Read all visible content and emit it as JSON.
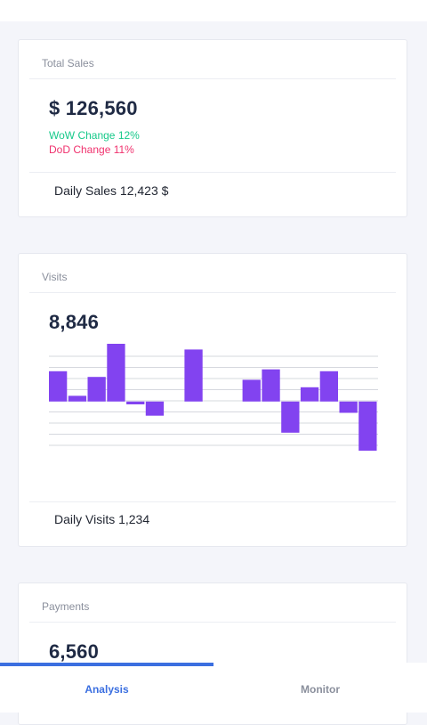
{
  "colors": {
    "accent": "#3b6fe0",
    "wow_change": "#17c98a",
    "dod_change": "#f0326e",
    "bar_color": "#8243f0"
  },
  "sales": {
    "title": "Total Sales",
    "value": "$ 126,560",
    "wow_change": "WoW Change 12%",
    "dod_change": "DoD Change 11%",
    "daily": "Daily Sales 12,423 $"
  },
  "visits": {
    "title": "Visits",
    "value": "8,846",
    "daily": "Daily Visits 1,234"
  },
  "payments": {
    "title": "Payments",
    "value": "6,560"
  },
  "chart_data": {
    "type": "bar",
    "series": [
      {
        "values": [
          3.2,
          0.6,
          2.6,
          6.1,
          -0.3,
          -1.5,
          0,
          5.5,
          0,
          0,
          2.3,
          3.4,
          -3.3,
          1.5,
          3.2,
          -1.2,
          -5.2
        ]
      }
    ],
    "ylim": [
      -5.2,
      6.1
    ],
    "grid": true
  },
  "tabs": [
    {
      "label": "Analysis",
      "active": true
    },
    {
      "label": "Monitor",
      "active": false
    }
  ]
}
